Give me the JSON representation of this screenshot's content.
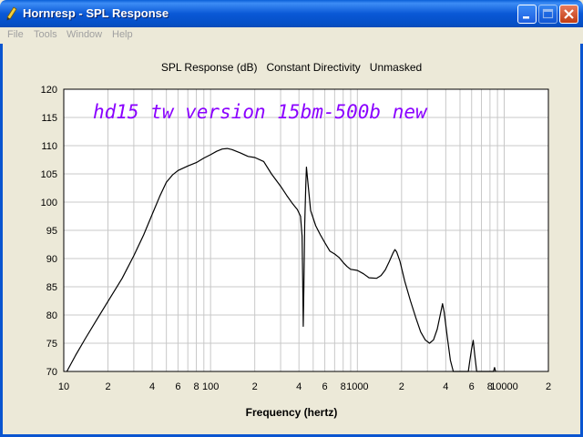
{
  "window": {
    "title": "Hornresp - SPL Response",
    "buttons": [
      "minimize",
      "maximize",
      "close"
    ],
    "icon": "pencil-icon"
  },
  "menu": [
    {
      "label": "File"
    },
    {
      "label": "Tools"
    },
    {
      "label": "Window"
    },
    {
      "label": "Help"
    }
  ],
  "chart_data": {
    "type": "line",
    "title": "SPL Response (dB)   Constant Directivity   Unmasked",
    "annotation": "hd15 tw version 15bm-500b new",
    "xlabel": "Frequency (hertz)",
    "ylabel": "",
    "x_scale": "log",
    "xlim": [
      10,
      20000
    ],
    "ylim": [
      70,
      120
    ],
    "grid": true,
    "y_ticks": [
      70,
      75,
      80,
      85,
      90,
      95,
      100,
      105,
      110,
      115,
      120
    ],
    "x_tick_labels": [
      {
        "value": 10,
        "label": "10"
      },
      {
        "value": 20,
        "label": "2"
      },
      {
        "value": 40,
        "label": "4"
      },
      {
        "value": 60,
        "label": "6"
      },
      {
        "value": 80,
        "label": "8"
      },
      {
        "value": 100,
        "label": "100"
      },
      {
        "value": 200,
        "label": "2"
      },
      {
        "value": 400,
        "label": "4"
      },
      {
        "value": 600,
        "label": "6"
      },
      {
        "value": 800,
        "label": "8"
      },
      {
        "value": 1000,
        "label": "1000"
      },
      {
        "value": 2000,
        "label": "2"
      },
      {
        "value": 4000,
        "label": "4"
      },
      {
        "value": 6000,
        "label": "6"
      },
      {
        "value": 8000,
        "label": "8"
      },
      {
        "value": 10000,
        "label": "10000"
      },
      {
        "value": 20000,
        "label": "2"
      }
    ],
    "series": [
      {
        "color": "#000000",
        "points": [
          [
            10.5,
            70
          ],
          [
            12,
            72.8
          ],
          [
            14,
            75.8
          ],
          [
            17,
            79.4
          ],
          [
            20,
            82.4
          ],
          [
            25,
            86.5
          ],
          [
            30,
            90.5
          ],
          [
            35,
            94.2
          ],
          [
            40,
            97.8
          ],
          [
            45,
            101
          ],
          [
            50,
            103.5
          ],
          [
            55,
            104.8
          ],
          [
            60,
            105.6
          ],
          [
            70,
            106.4
          ],
          [
            80,
            107
          ],
          [
            90,
            107.8
          ],
          [
            100,
            108.4
          ],
          [
            110,
            109
          ],
          [
            120,
            109.4
          ],
          [
            130,
            109.5
          ],
          [
            140,
            109.3
          ],
          [
            160,
            108.7
          ],
          [
            180,
            108.1
          ],
          [
            200,
            107.9
          ],
          [
            230,
            107.2
          ],
          [
            260,
            105
          ],
          [
            300,
            102.8
          ],
          [
            330,
            101.2
          ],
          [
            360,
            99.8
          ],
          [
            390,
            98.7
          ],
          [
            410,
            97.5
          ],
          [
            420,
            94
          ],
          [
            425,
            85
          ],
          [
            428,
            78
          ],
          [
            432,
            85
          ],
          [
            438,
            96
          ],
          [
            445,
            103
          ],
          [
            450,
            106.2
          ],
          [
            460,
            103.5
          ],
          [
            480,
            98.5
          ],
          [
            520,
            95.8
          ],
          [
            560,
            94.2
          ],
          [
            600,
            92.8
          ],
          [
            650,
            91.3
          ],
          [
            700,
            90.8
          ],
          [
            750,
            90.2
          ],
          [
            800,
            89.3
          ],
          [
            850,
            88.6
          ],
          [
            900,
            88.1
          ],
          [
            1000,
            87.9
          ],
          [
            1100,
            87.3
          ],
          [
            1200,
            86.6
          ],
          [
            1350,
            86.5
          ],
          [
            1450,
            87
          ],
          [
            1550,
            88
          ],
          [
            1650,
            89.5
          ],
          [
            1750,
            91
          ],
          [
            1800,
            91.6
          ],
          [
            1850,
            91.2
          ],
          [
            1950,
            89.5
          ],
          [
            2100,
            86
          ],
          [
            2300,
            82.5
          ],
          [
            2500,
            79.5
          ],
          [
            2700,
            77
          ],
          [
            2900,
            75.6
          ],
          [
            3100,
            75
          ],
          [
            3300,
            75.6
          ],
          [
            3500,
            77.5
          ],
          [
            3700,
            80.5
          ],
          [
            3800,
            82
          ],
          [
            3900,
            80.5
          ],
          [
            4100,
            76
          ],
          [
            4300,
            72
          ],
          [
            4500,
            70
          ],
          [
            5700,
            70
          ],
          [
            5800,
            71.5
          ],
          [
            6000,
            74
          ],
          [
            6150,
            75.5
          ],
          [
            6300,
            73
          ],
          [
            6500,
            70
          ],
          [
            8450,
            70
          ],
          [
            8600,
            70.7
          ],
          [
            8750,
            70
          ]
        ]
      }
    ]
  }
}
